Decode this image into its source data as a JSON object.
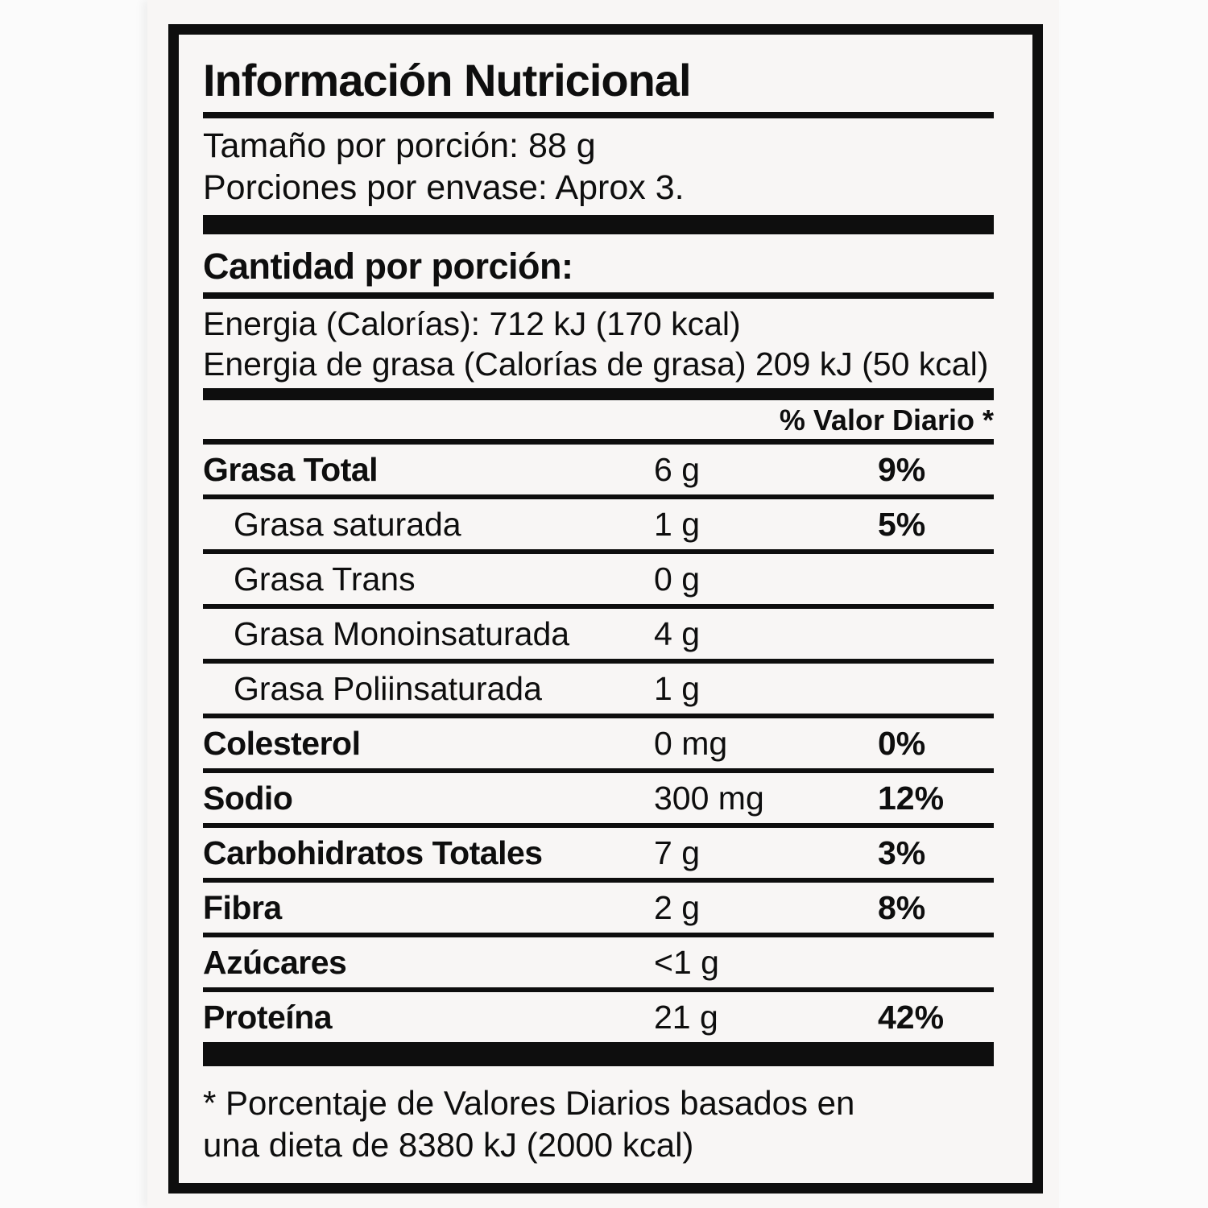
{
  "label": {
    "title": "Información Nutricional",
    "serving": {
      "size": "Tamaño por porción: 88 g",
      "per_container": "Porciones por envase: Aprox 3."
    },
    "amount_heading": "Cantidad por porción:",
    "energy": {
      "line1": "Energia (Calorías): 712 kJ (170 kcal)",
      "line2": "Energia de grasa (Calorías de grasa) 209 kJ (50 kcal)"
    },
    "daily_value_header": "% Valor Diario *",
    "rows": [
      {
        "name": "Grasa Total",
        "amount": "6 g",
        "dv": "9%",
        "bold": true,
        "indent": false
      },
      {
        "name": "Grasa saturada",
        "amount": "1 g",
        "dv": "5%",
        "bold": false,
        "indent": true
      },
      {
        "name": "Grasa Trans",
        "amount": "0 g",
        "dv": "",
        "bold": false,
        "indent": true
      },
      {
        "name": "Grasa Monoinsaturada",
        "amount": "4 g",
        "dv": "",
        "bold": false,
        "indent": true
      },
      {
        "name": "Grasa Poliinsaturada",
        "amount": "1 g",
        "dv": "",
        "bold": false,
        "indent": true
      },
      {
        "name": "Colesterol",
        "amount": "0 mg",
        "dv": "0%",
        "bold": true,
        "indent": false
      },
      {
        "name": "Sodio",
        "amount": "300 mg",
        "dv": "12%",
        "bold": true,
        "indent": false
      },
      {
        "name": "Carbohidratos Totales",
        "amount": "7 g",
        "dv": "3%",
        "bold": true,
        "indent": false
      },
      {
        "name": "Fibra",
        "amount": "2 g",
        "dv": "8%",
        "bold": true,
        "indent": false
      },
      {
        "name": "Azúcares",
        "amount": "<1 g",
        "dv": "",
        "bold": true,
        "indent": false
      },
      {
        "name": "Proteína",
        "amount": "21 g",
        "dv": "42%",
        "bold": true,
        "indent": false
      }
    ],
    "footnote": {
      "line1": "* Porcentaje de Valores Diarios basados en",
      "line2": "una dieta de 8380 kJ (2000 kcal)"
    },
    "colors": {
      "ink": "#0e0e0e",
      "paper": "#f8f6f5"
    }
  }
}
